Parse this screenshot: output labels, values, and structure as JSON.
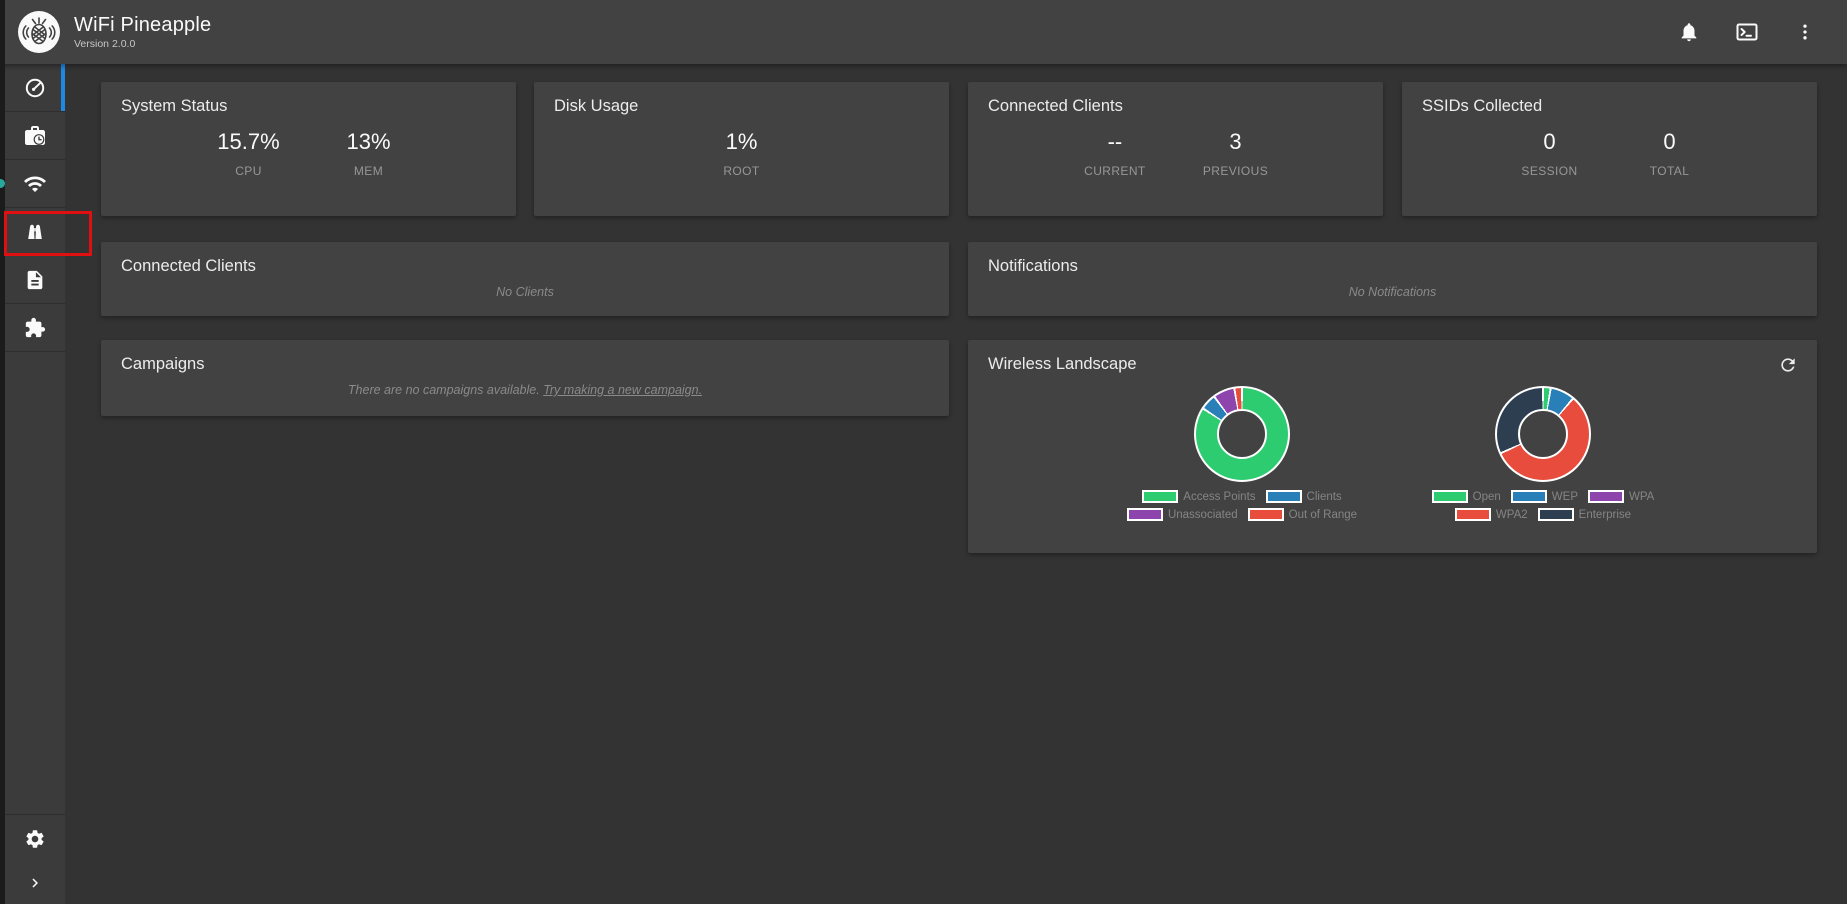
{
  "header": {
    "title": "WiFi Pineapple",
    "version": "Version 2.0.0",
    "icons": [
      "notifications-bell",
      "terminal",
      "kebab-menu"
    ]
  },
  "sidebar": {
    "items": [
      {
        "id": "dashboard",
        "icon": "gauge-icon",
        "active": true
      },
      {
        "id": "campaigns",
        "icon": "briefcase-clock-icon",
        "active": false
      },
      {
        "id": "pineap",
        "icon": "wifi-icon",
        "active": false
      },
      {
        "id": "recon",
        "icon": "binoculars-icon",
        "active": false,
        "annotated_red_box": true
      },
      {
        "id": "logging",
        "icon": "document-icon",
        "active": false
      },
      {
        "id": "modules",
        "icon": "puzzle-icon",
        "active": false
      }
    ],
    "bottom_items": [
      {
        "id": "settings",
        "icon": "gear-icon"
      },
      {
        "id": "collapse",
        "icon": "chevron-right-icon"
      }
    ]
  },
  "cards": {
    "system_status": {
      "title": "System Status",
      "stats": [
        {
          "value": "15.7%",
          "label": "CPU"
        },
        {
          "value": "13%",
          "label": "MEM"
        }
      ]
    },
    "disk_usage": {
      "title": "Disk Usage",
      "stats": [
        {
          "value": "1%",
          "label": "ROOT"
        }
      ]
    },
    "connected_clients_summary": {
      "title": "Connected Clients",
      "stats": [
        {
          "value": "--",
          "label": "CURRENT"
        },
        {
          "value": "3",
          "label": "PREVIOUS"
        }
      ]
    },
    "ssids_collected": {
      "title": "SSIDs Collected",
      "stats": [
        {
          "value": "0",
          "label": "SESSION"
        },
        {
          "value": "0",
          "label": "TOTAL"
        }
      ]
    },
    "connected_clients": {
      "title": "Connected Clients",
      "empty_text": "No Clients"
    },
    "notifications": {
      "title": "Notifications",
      "empty_text": "No Notifications"
    },
    "campaigns": {
      "title": "Campaigns",
      "empty_text": "There are no campaigns available.",
      "link_text": "Try making a new campaign."
    },
    "wireless_landscape": {
      "title": "Wireless Landscape"
    }
  },
  "chart_data": [
    {
      "type": "pie",
      "title": "Wireless Landscape - devices donut",
      "labels": [
        "Access Points",
        "Clients",
        "Unassociated",
        "Out of Range"
      ],
      "values": [
        86,
        5,
        7,
        2
      ],
      "colors": [
        "#2ecc71",
        "#2980b9",
        "#8e44ad",
        "#e74c3c"
      ],
      "legend_position": "bottom",
      "legend_rows": [
        [
          0,
          1
        ],
        [
          2,
          3
        ]
      ]
    },
    {
      "type": "pie",
      "title": "Wireless Landscape - security donut",
      "labels": [
        "Open",
        "WEP",
        "WPA",
        "WPA2",
        "Enterprise"
      ],
      "values": [
        2,
        8,
        0,
        58,
        32
      ],
      "colors": [
        "#2ecc71",
        "#2980b9",
        "#8e44ad",
        "#e74c3c",
        "#2c3e50"
      ],
      "legend_position": "bottom",
      "legend_rows": [
        [
          0,
          1,
          2
        ],
        [
          3,
          4
        ]
      ]
    }
  ],
  "colors": {
    "page_bg": "#333333",
    "card_bg": "#424242",
    "sidebar_bg": "#3b3b3b",
    "active_indicator": "#1e88e5",
    "annotation_red": "#e01010",
    "muted_text": "#979797"
  }
}
